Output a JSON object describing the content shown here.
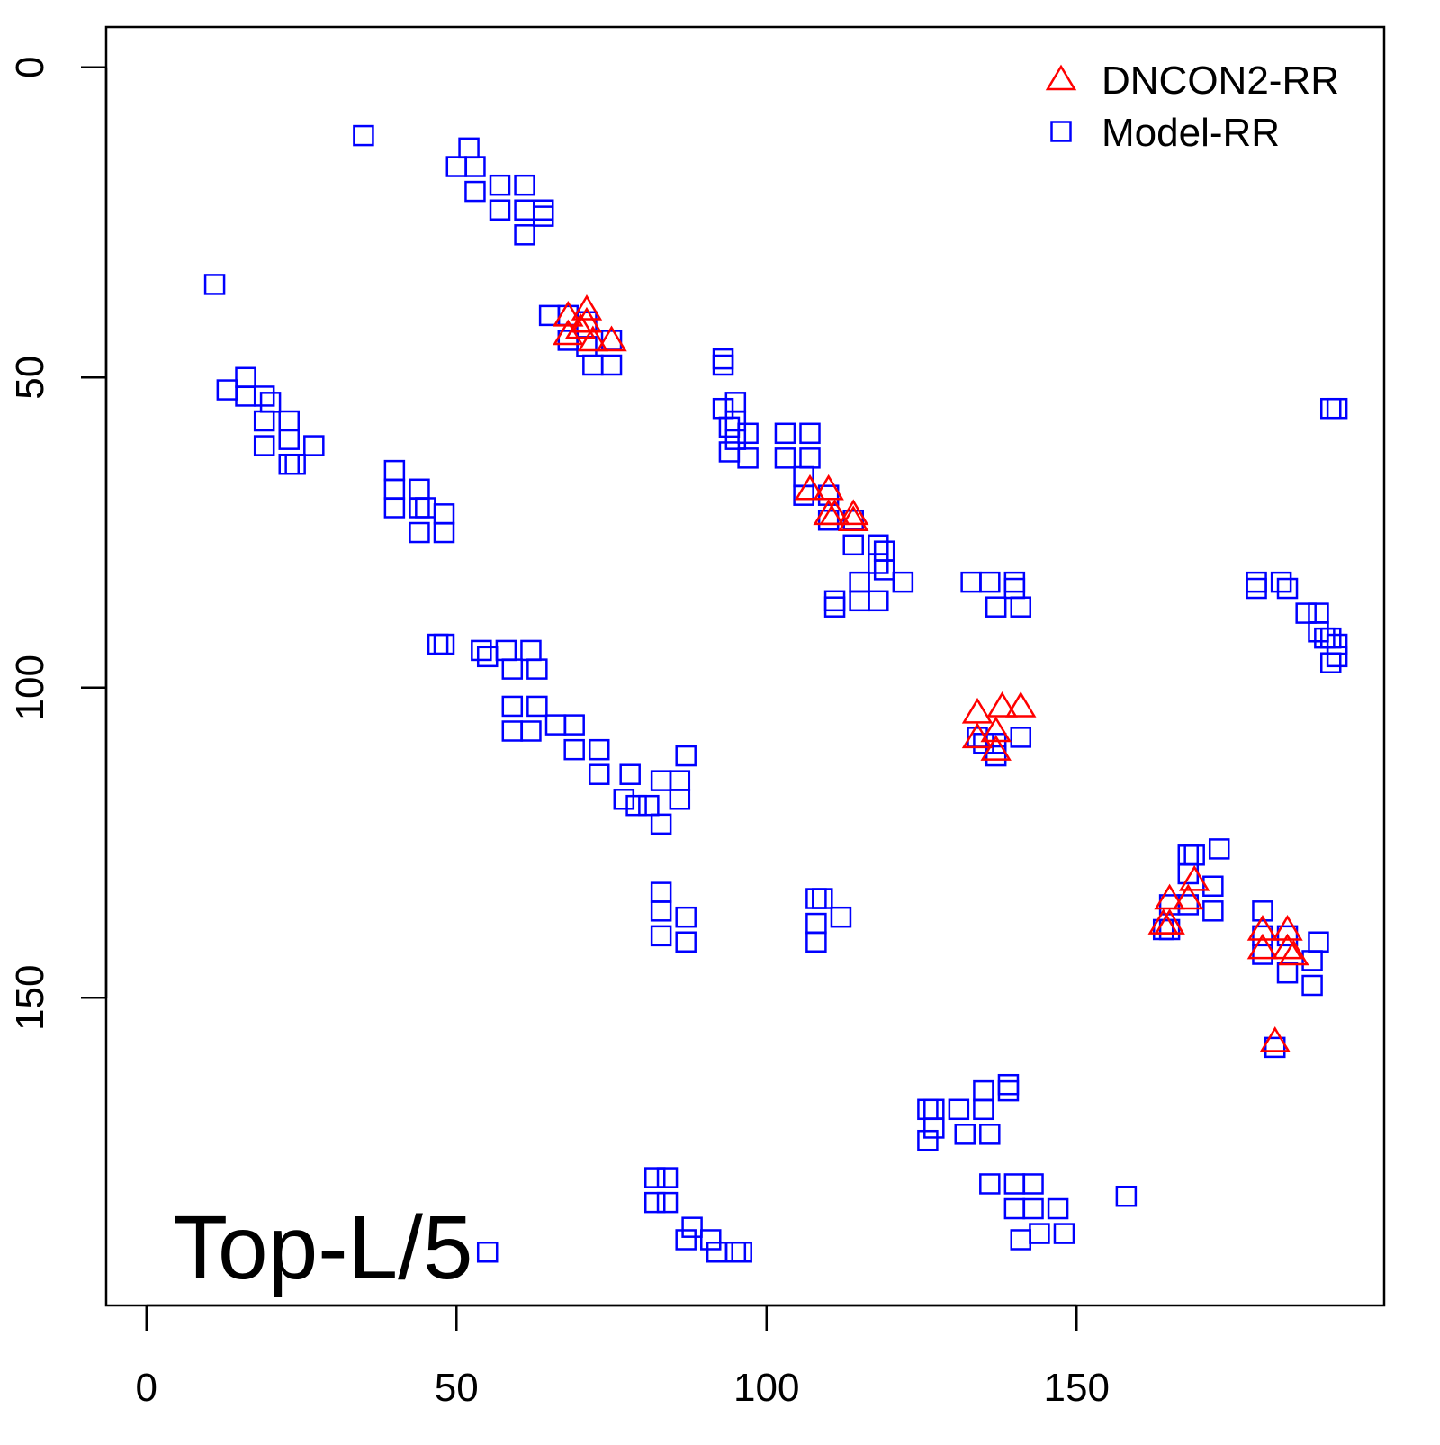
{
  "chart_data": {
    "type": "scatter",
    "title": "",
    "xlabel": "",
    "ylabel": "",
    "xlim": [
      -6.5,
      199.6
    ],
    "ylim": [
      -6.5,
      199.6
    ],
    "y_inverted": true,
    "xticks": [
      0,
      50,
      100,
      150
    ],
    "yticks": [
      0,
      50,
      100,
      150
    ],
    "grid": false,
    "annotation": "Top-L/5",
    "legend": {
      "placement": "top-right",
      "entries": [
        {
          "label": "DNCON2-RR",
          "marker": "triangle",
          "color": "#ff0000"
        },
        {
          "label": "Model-RR",
          "marker": "square",
          "color": "#0000ff"
        }
      ]
    },
    "series": [
      {
        "name": "Model-RR",
        "marker": "square",
        "color": "#0000ff",
        "points": [
          [
            35,
            11
          ],
          [
            11,
            35
          ],
          [
            52,
            13
          ],
          [
            50,
            16
          ],
          [
            53,
            16
          ],
          [
            53,
            20
          ],
          [
            57,
            19
          ],
          [
            57,
            23
          ],
          [
            61,
            19
          ],
          [
            61,
            23
          ],
          [
            61,
            27
          ],
          [
            64,
            23
          ],
          [
            64,
            24
          ],
          [
            65,
            40
          ],
          [
            68,
            40
          ],
          [
            68,
            44
          ],
          [
            71,
            41
          ],
          [
            71,
            45
          ],
          [
            72,
            48
          ],
          [
            75,
            44
          ],
          [
            75,
            48
          ],
          [
            13,
            52
          ],
          [
            16,
            50
          ],
          [
            16,
            53
          ],
          [
            19,
            53
          ],
          [
            19,
            57
          ],
          [
            20,
            54
          ],
          [
            23,
            57
          ],
          [
            23,
            60
          ],
          [
            19,
            61
          ],
          [
            23,
            64
          ],
          [
            24,
            64
          ],
          [
            27,
            61
          ],
          [
            40,
            65
          ],
          [
            40,
            68
          ],
          [
            40,
            71
          ],
          [
            44,
            68
          ],
          [
            44,
            71
          ],
          [
            45,
            71
          ],
          [
            44,
            75
          ],
          [
            48,
            72
          ],
          [
            48,
            75
          ],
          [
            93,
            47
          ],
          [
            93,
            48
          ],
          [
            93,
            55
          ],
          [
            95,
            54
          ],
          [
            95,
            57
          ],
          [
            94,
            58
          ],
          [
            94,
            62
          ],
          [
            97,
            59
          ],
          [
            97,
            63
          ],
          [
            95,
            60
          ],
          [
            103,
            59
          ],
          [
            107,
            59
          ],
          [
            103,
            63
          ],
          [
            107,
            63
          ],
          [
            106,
            66
          ],
          [
            106,
            69
          ],
          [
            110,
            69
          ],
          [
            110,
            73
          ],
          [
            114,
            73
          ],
          [
            114,
            77
          ],
          [
            118,
            77
          ],
          [
            118,
            80
          ],
          [
            119,
            78
          ],
          [
            119,
            81
          ],
          [
            122,
            83
          ],
          [
            115,
            83
          ],
          [
            115,
            86
          ],
          [
            118,
            86
          ],
          [
            111,
            86
          ],
          [
            111,
            87
          ],
          [
            133,
            83
          ],
          [
            136,
            83
          ],
          [
            140,
            83
          ],
          [
            140,
            84
          ],
          [
            137,
            87
          ],
          [
            141,
            87
          ],
          [
            134,
            108
          ],
          [
            137,
            109
          ],
          [
            137,
            111
          ],
          [
            141,
            108
          ],
          [
            135,
            109
          ],
          [
            179,
            83
          ],
          [
            183,
            83
          ],
          [
            184,
            84
          ],
          [
            179,
            84
          ],
          [
            187,
            88
          ],
          [
            189,
            88
          ],
          [
            189,
            91
          ],
          [
            190,
            92
          ],
          [
            191,
            92
          ],
          [
            191,
            96
          ],
          [
            192,
            93
          ],
          [
            192,
            95
          ],
          [
            191,
            55
          ],
          [
            192,
            55
          ],
          [
            47,
            93
          ],
          [
            48,
            93
          ],
          [
            54,
            94
          ],
          [
            55,
            95
          ],
          [
            58,
            94
          ],
          [
            59,
            97
          ],
          [
            62,
            94
          ],
          [
            63,
            97
          ],
          [
            59,
            103
          ],
          [
            59,
            107
          ],
          [
            63,
            103
          ],
          [
            62,
            107
          ],
          [
            66,
            106
          ],
          [
            69,
            106
          ],
          [
            69,
            110
          ],
          [
            73,
            110
          ],
          [
            73,
            114
          ],
          [
            78,
            114
          ],
          [
            77,
            118
          ],
          [
            79,
            119
          ],
          [
            81,
            119
          ],
          [
            83,
            122
          ],
          [
            83,
            115
          ],
          [
            86,
            115
          ],
          [
            86,
            118
          ],
          [
            87,
            111
          ],
          [
            83,
            133
          ],
          [
            83,
            136
          ],
          [
            83,
            140
          ],
          [
            87,
            137
          ],
          [
            87,
            141
          ],
          [
            108,
            134
          ],
          [
            109,
            134
          ],
          [
            108,
            138
          ],
          [
            108,
            141
          ],
          [
            112,
            137
          ],
          [
            168,
            127
          ],
          [
            169,
            127
          ],
          [
            173,
            126
          ],
          [
            172,
            132
          ],
          [
            172,
            136
          ],
          [
            168,
            130
          ],
          [
            165,
            135
          ],
          [
            168,
            135
          ],
          [
            164,
            139
          ],
          [
            165,
            139
          ],
          [
            180,
            136
          ],
          [
            180,
            140
          ],
          [
            184,
            140
          ],
          [
            180,
            143
          ],
          [
            184,
            146
          ],
          [
            189,
            141
          ],
          [
            188,
            144
          ],
          [
            188,
            148
          ],
          [
            182,
            158
          ],
          [
            126,
            168
          ],
          [
            127,
            168
          ],
          [
            127,
            171
          ],
          [
            126,
            173
          ],
          [
            131,
            168
          ],
          [
            132,
            172
          ],
          [
            135,
            168
          ],
          [
            136,
            172
          ],
          [
            135,
            165
          ],
          [
            139,
            164
          ],
          [
            139,
            165
          ],
          [
            136,
            180
          ],
          [
            140,
            180
          ],
          [
            143,
            180
          ],
          [
            140,
            184
          ],
          [
            143,
            184
          ],
          [
            147,
            184
          ],
          [
            148,
            188
          ],
          [
            144,
            188
          ],
          [
            141,
            189
          ],
          [
            158,
            182
          ],
          [
            82,
            179
          ],
          [
            84,
            179
          ],
          [
            82,
            183
          ],
          [
            84,
            183
          ],
          [
            88,
            187
          ],
          [
            87,
            189
          ],
          [
            91,
            189
          ],
          [
            92,
            191
          ],
          [
            95,
            191
          ],
          [
            96,
            191
          ],
          [
            55,
            191
          ]
        ]
      },
      {
        "name": "DNCON2-RR",
        "marker": "triangle",
        "color": "#ff0000",
        "points": [
          [
            68,
            40
          ],
          [
            68,
            43
          ],
          [
            71,
            39
          ],
          [
            71,
            41
          ],
          [
            72,
            44
          ],
          [
            75,
            44
          ],
          [
            70,
            42
          ],
          [
            107,
            68
          ],
          [
            110,
            68
          ],
          [
            110,
            72
          ],
          [
            111,
            72
          ],
          [
            114,
            72
          ],
          [
            114,
            73
          ],
          [
            134,
            104
          ],
          [
            138,
            103
          ],
          [
            141,
            103
          ],
          [
            134,
            108
          ],
          [
            137,
            107
          ],
          [
            137,
            110
          ],
          [
            165,
            134
          ],
          [
            165,
            138
          ],
          [
            169,
            131
          ],
          [
            168,
            134
          ],
          [
            164,
            138
          ],
          [
            180,
            139
          ],
          [
            180,
            142
          ],
          [
            184,
            139
          ],
          [
            184,
            142
          ],
          [
            185,
            143
          ],
          [
            182,
            157
          ]
        ]
      }
    ]
  }
}
